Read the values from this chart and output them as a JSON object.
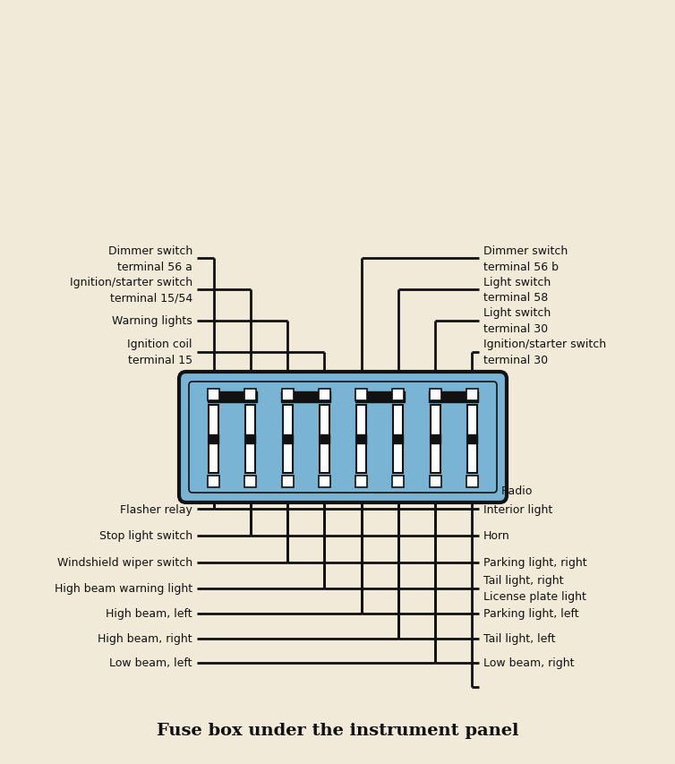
{
  "bg_color": "#f2ead8",
  "line_color": "#111111",
  "fuse_box_color": "#7ab4d4",
  "title": "Fuse box under the instrument panel",
  "title_fontsize": 14,
  "left_top_labels": [
    [
      "Dimmer switch",
      "terminal 56 a"
    ],
    [
      "Ignition/starter switch",
      "terminal 15/54"
    ],
    [
      "Warning lights",
      ""
    ],
    [
      "Ignition coil",
      "terminal 15"
    ]
  ],
  "right_top_labels": [
    [
      "Dimmer switch",
      "terminal 56 b"
    ],
    [
      "Light switch",
      "terminal 58"
    ],
    [
      "Light switch",
      "terminal 30"
    ],
    [
      "Ignition/starter switch",
      "terminal 30"
    ]
  ],
  "left_bottom_labels": [
    "Flasher relay",
    "Stop light switch",
    "Windshield wiper switch",
    "High beam warning light",
    "High beam, left",
    "High beam, right",
    "Low beam, left"
  ],
  "right_bottom_labels": [
    "Radio",
    "Interior light",
    "Horn",
    "Parking light, right",
    [
      "Tail light, right",
      "License plate light"
    ],
    "Parking light, left",
    "Tail light, left",
    "Low beam, right"
  ],
  "num_fuses": 8
}
